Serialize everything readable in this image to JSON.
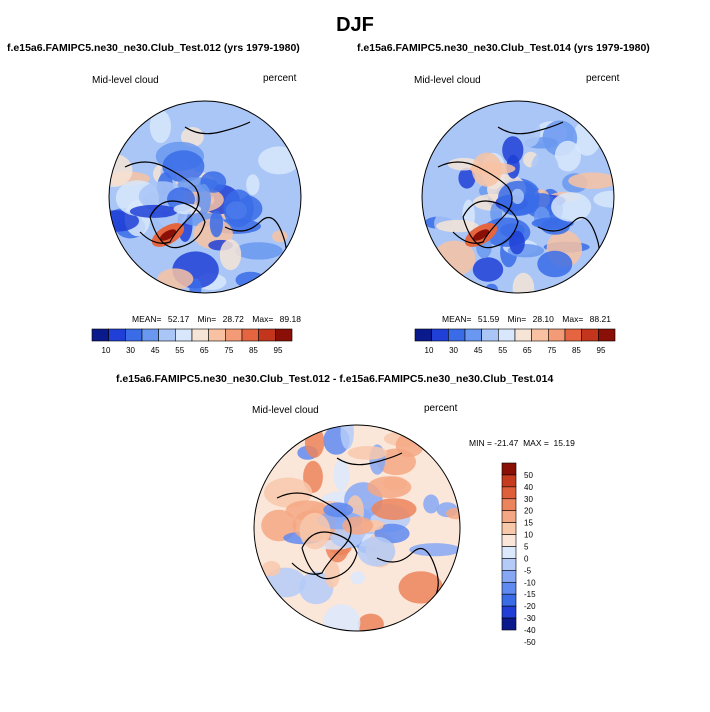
{
  "page": {
    "title": "DJF"
  },
  "colors": {
    "background": "#ffffff",
    "seq_palette": [
      "#0a1a8c",
      "#1f3fd6",
      "#3a6ce8",
      "#6a98f0",
      "#a9c6f7",
      "#d8e7fb",
      "#f6e4d6",
      "#f8c2a2",
      "#f39a76",
      "#e4653f",
      "#c3361d",
      "#8a0f07"
    ],
    "diff_palette": [
      "#0a1a8c",
      "#1f3fd6",
      "#3a6ce8",
      "#5f8af0",
      "#86a8f4",
      "#b4cbf8",
      "#dce8fc",
      "#fbe7d9",
      "#f8c8ab",
      "#f4a783",
      "#ec845c",
      "#de5f3a",
      "#c63b1e",
      "#8a0f07"
    ],
    "map_base": "#a9c6f7",
    "land_line": "#000000"
  },
  "chart_data": [
    {
      "type": "heatmap",
      "projection": "polar-stereographic",
      "title": "f.e15a6.FAMIPC5.ne30_ne30.Club_Test.012 (yrs 1979-1980)",
      "left_label": "Mid-level cloud",
      "right_label": "percent",
      "stats": {
        "mean_label": "MEAN=",
        "mean": "52.17",
        "min_label": "Min=",
        "min": "28.72",
        "max_label": "Max=",
        "max": "89.18"
      },
      "colorbar": {
        "orientation": "horizontal",
        "levels": [
          5,
          10,
          15,
          20,
          30,
          40,
          45,
          50,
          55,
          60,
          65,
          70,
          75,
          80,
          85,
          90,
          95
        ],
        "tick_labels": [
          "10",
          "30",
          "45",
          "55",
          "65",
          "75",
          "85",
          "95"
        ]
      }
    },
    {
      "type": "heatmap",
      "projection": "polar-stereographic",
      "title": "f.e15a6.FAMIPC5.ne30_ne30.Club_Test.014 (yrs 1979-1980)",
      "left_label": "Mid-level cloud",
      "right_label": "percent",
      "stats": {
        "mean_label": "MEAN=",
        "mean": "51.59",
        "min_label": "Min=",
        "min": "28.10",
        "max_label": "Max=",
        "max": "88.21"
      },
      "colorbar": {
        "orientation": "horizontal",
        "levels": [
          5,
          10,
          15,
          20,
          30,
          40,
          45,
          50,
          55,
          60,
          65,
          70,
          75,
          80,
          85,
          90,
          95
        ],
        "tick_labels": [
          "10",
          "30",
          "45",
          "55",
          "65",
          "75",
          "85",
          "95"
        ]
      }
    },
    {
      "type": "heatmap",
      "projection": "polar-stereographic",
      "title": "f.e15a6.FAMIPC5.ne30_ne30.Club_Test.012 - f.e15a6.FAMIPC5.ne30_ne30.Club_Test.014",
      "left_label": "Mid-level cloud",
      "right_label": "percent",
      "stats": {
        "text": "MIN = -21.47  MAX =  15.19",
        "min": -21.47,
        "max": 15.19
      },
      "colorbar": {
        "orientation": "vertical",
        "tick_labels": [
          "50",
          "40",
          "30",
          "20",
          "15",
          "10",
          "5",
          "0",
          "-5",
          "-10",
          "-15",
          "-20",
          "-30",
          "-40",
          "-50"
        ]
      }
    }
  ]
}
